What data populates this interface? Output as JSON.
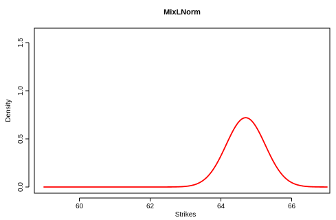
{
  "chart_data": {
    "type": "line",
    "title": "MixLNorm",
    "xlabel": "Strikes",
    "ylabel": "Density",
    "xlim": [
      59,
      67
    ],
    "ylim": [
      0,
      1.7
    ],
    "x_ticks": [
      60,
      62,
      64,
      66
    ],
    "y_ticks": [
      0.0,
      0.5,
      1.0,
      1.5
    ],
    "x_tick_labels": [
      "60",
      "62",
      "64",
      "66"
    ],
    "y_tick_labels": [
      "0.0",
      "0.5",
      "1.0",
      "1.5"
    ],
    "grid": false,
    "legend": "none",
    "series": [
      {
        "color": "#ff0000",
        "x": [
          59.0,
          60.0,
          61.0,
          62.0,
          63.0,
          63.5,
          63.8,
          64.0,
          64.2,
          64.4,
          64.6,
          64.7,
          64.8,
          65.0,
          65.2,
          65.4,
          65.6,
          65.8,
          66.0,
          66.5,
          67.0
        ],
        "y": [
          0.0,
          0.0,
          0.0,
          0.0,
          0.0,
          0.01,
          0.05,
          0.13,
          0.29,
          0.51,
          0.69,
          0.72,
          0.69,
          0.51,
          0.29,
          0.13,
          0.05,
          0.01,
          0.0,
          0.0,
          0.0
        ]
      }
    ]
  }
}
